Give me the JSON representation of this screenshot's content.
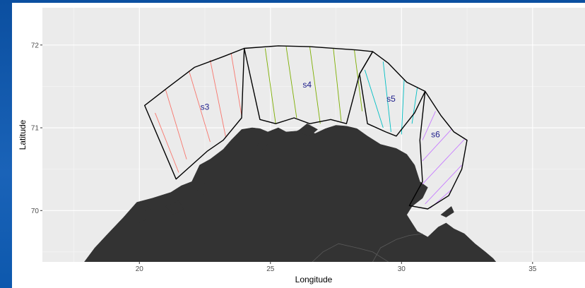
{
  "chart_data": {
    "type": "map",
    "xlabel": "Longitude",
    "ylabel": "Latitude",
    "x_ticks": [
      20,
      25,
      30,
      35
    ],
    "y_ticks": [
      70,
      71,
      72
    ],
    "xlim": [
      16.3,
      37.0
    ],
    "ylim": [
      69.38,
      72.45
    ],
    "panel_background": "#EBEBEB",
    "grid_color": "#FFFFFF",
    "land_color": "#333333",
    "strata": [
      {
        "name": "s3",
        "color": "#F8766D",
        "label_pos": [
          22.5,
          71.25
        ],
        "outline": [
          [
            20.2,
            71.27
          ],
          [
            21.1,
            71.49
          ],
          [
            22.1,
            71.73
          ],
          [
            23.2,
            71.86
          ],
          [
            24.0,
            71.96
          ],
          [
            23.9,
            71.12
          ],
          [
            23.2,
            70.85
          ],
          [
            22.6,
            70.72
          ],
          [
            21.4,
            70.38
          ],
          [
            20.2,
            71.27
          ]
        ],
        "hatch": [
          [
            [
              20.6,
              71.18
            ],
            [
              21.5,
              70.46
            ]
          ],
          [
            [
              21.0,
              71.46
            ],
            [
              21.8,
              70.62
            ]
          ],
          [
            [
              21.9,
              71.68
            ],
            [
              22.7,
              70.83
            ]
          ],
          [
            [
              22.7,
              71.82
            ],
            [
              23.3,
              70.88
            ]
          ],
          [
            [
              23.5,
              71.9
            ],
            [
              23.9,
              71.15
            ]
          ]
        ]
      },
      {
        "name": "s4",
        "color": "#7CAE00",
        "label_pos": [
          26.4,
          71.52
        ],
        "outline": [
          [
            24.0,
            71.96
          ],
          [
            25.3,
            71.99
          ],
          [
            26.5,
            71.98
          ],
          [
            28.3,
            71.94
          ],
          [
            28.9,
            71.92
          ],
          [
            28.4,
            71.65
          ],
          [
            27.9,
            71.05
          ],
          [
            27.3,
            71.1
          ],
          [
            26.5,
            71.05
          ],
          [
            25.9,
            71.12
          ],
          [
            25.2,
            71.05
          ],
          [
            24.6,
            71.1
          ],
          [
            24.0,
            71.96
          ]
        ],
        "hatch": [
          [
            [
              24.8,
              71.96
            ],
            [
              25.2,
              71.05
            ]
          ],
          [
            [
              25.6,
              71.98
            ],
            [
              26.0,
              71.12
            ]
          ],
          [
            [
              26.5,
              71.98
            ],
            [
              26.9,
              71.05
            ]
          ],
          [
            [
              27.4,
              71.96
            ],
            [
              27.7,
              71.08
            ]
          ],
          [
            [
              28.2,
              71.94
            ],
            [
              28.5,
              71.2
            ]
          ]
        ]
      },
      {
        "name": "s5",
        "color": "#00BFC4",
        "label_pos": [
          29.6,
          71.35
        ],
        "outline": [
          [
            28.9,
            71.92
          ],
          [
            29.5,
            71.78
          ],
          [
            30.2,
            71.55
          ],
          [
            30.9,
            71.44
          ],
          [
            30.5,
            71.18
          ],
          [
            29.8,
            70.9
          ],
          [
            29.4,
            70.95
          ],
          [
            28.7,
            71.05
          ],
          [
            28.4,
            71.65
          ],
          [
            28.9,
            71.92
          ]
        ],
        "hatch": [
          [
            [
              28.6,
              71.7
            ],
            [
              29.3,
              71.0
            ]
          ],
          [
            [
              29.3,
              71.8
            ],
            [
              29.6,
              70.95
            ]
          ],
          [
            [
              30.1,
              71.58
            ],
            [
              30.0,
              70.92
            ]
          ],
          [
            [
              30.6,
              71.48
            ],
            [
              30.4,
              71.05
            ]
          ]
        ]
      },
      {
        "name": "s6",
        "color": "#C77CFF",
        "label_pos": [
          31.3,
          70.92
        ],
        "outline": [
          [
            30.9,
            71.44
          ],
          [
            31.5,
            71.15
          ],
          [
            32.0,
            70.95
          ],
          [
            32.5,
            70.85
          ],
          [
            32.3,
            70.5
          ],
          [
            31.8,
            70.18
          ],
          [
            31.0,
            70.02
          ],
          [
            30.3,
            70.06
          ],
          [
            30.8,
            70.35
          ],
          [
            30.7,
            70.85
          ],
          [
            30.9,
            71.44
          ]
        ],
        "hatch": [
          [
            [
              31.3,
              71.2
            ],
            [
              30.8,
              70.85
            ]
          ],
          [
            [
              31.9,
              70.98
            ],
            [
              30.8,
              70.6
            ]
          ],
          [
            [
              32.4,
              70.86
            ],
            [
              30.8,
              70.32
            ]
          ],
          [
            [
              32.3,
              70.55
            ],
            [
              30.9,
              70.08
            ]
          ],
          [
            [
              31.9,
              70.25
            ],
            [
              31.1,
              70.03
            ]
          ]
        ]
      }
    ],
    "land": [
      [
        [
          17.9,
          69.38
        ],
        [
          18.3,
          69.55
        ],
        [
          18.8,
          69.72
        ],
        [
          19.4,
          69.92
        ],
        [
          19.9,
          70.1
        ],
        [
          20.5,
          70.15
        ],
        [
          21.2,
          70.22
        ],
        [
          21.6,
          70.3
        ],
        [
          22.0,
          70.35
        ],
        [
          22.3,
          70.55
        ],
        [
          22.7,
          70.62
        ],
        [
          23.2,
          70.74
        ],
        [
          23.5,
          70.85
        ],
        [
          23.9,
          70.98
        ],
        [
          24.3,
          71.0
        ],
        [
          24.6,
          70.99
        ],
        [
          24.9,
          70.95
        ],
        [
          25.3,
          71.0
        ],
        [
          25.6,
          70.95
        ],
        [
          26.0,
          70.96
        ],
        [
          26.3,
          71.0
        ],
        [
          26.7,
          70.93
        ],
        [
          27.1,
          70.99
        ],
        [
          27.5,
          71.03
        ],
        [
          27.9,
          71.02
        ],
        [
          28.3,
          70.99
        ],
        [
          28.7,
          70.9
        ],
        [
          29.2,
          70.8
        ],
        [
          29.8,
          70.75
        ],
        [
          30.2,
          70.68
        ],
        [
          30.5,
          70.55
        ],
        [
          30.7,
          70.35
        ],
        [
          31.0,
          70.28
        ],
        [
          30.8,
          70.15
        ],
        [
          30.4,
          70.05
        ],
        [
          30.2,
          69.95
        ],
        [
          30.4,
          69.85
        ],
        [
          30.6,
          69.75
        ],
        [
          31.0,
          69.68
        ],
        [
          31.4,
          69.8
        ],
        [
          31.7,
          69.85
        ],
        [
          32.0,
          69.78
        ],
        [
          32.4,
          69.72
        ],
        [
          32.8,
          69.6
        ],
        [
          33.2,
          69.5
        ],
        [
          33.5,
          69.42
        ],
        [
          33.6,
          69.38
        ]
      ],
      [
        [
          20.0,
          69.85
        ],
        [
          20.3,
          70.05
        ],
        [
          20.5,
          70.0
        ],
        [
          20.3,
          69.9
        ]
      ],
      [
        [
          21.0,
          70.05
        ],
        [
          21.5,
          70.12
        ],
        [
          21.7,
          70.02
        ],
        [
          21.3,
          69.95
        ]
      ],
      [
        [
          22.2,
          70.25
        ],
        [
          22.6,
          70.35
        ],
        [
          22.8,
          70.28
        ],
        [
          22.5,
          70.18
        ]
      ],
      [
        [
          24.6,
          70.88
        ],
        [
          24.9,
          70.82
        ],
        [
          24.8,
          70.72
        ],
        [
          24.5,
          70.78
        ]
      ],
      [
        [
          26.0,
          70.95
        ],
        [
          26.4,
          71.05
        ],
        [
          26.8,
          70.98
        ],
        [
          26.5,
          70.9
        ]
      ],
      [
        [
          31.5,
          69.95
        ],
        [
          31.9,
          70.05
        ],
        [
          32.0,
          69.98
        ],
        [
          31.7,
          69.92
        ]
      ]
    ],
    "borders": [
      [
        [
          26.6,
          69.38
        ],
        [
          27.0,
          69.5
        ],
        [
          27.6,
          69.6
        ],
        [
          28.3,
          69.55
        ],
        [
          28.9,
          69.5
        ],
        [
          29.3,
          69.42
        ],
        [
          29.5,
          69.38
        ]
      ],
      [
        [
          28.9,
          69.38
        ],
        [
          29.2,
          69.55
        ],
        [
          29.8,
          69.65
        ],
        [
          30.3,
          69.7
        ],
        [
          30.8,
          69.72
        ]
      ]
    ]
  }
}
